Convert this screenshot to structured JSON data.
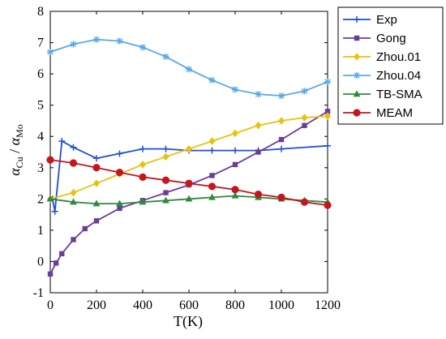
{
  "chart_data": {
    "type": "line",
    "xlabel": "T(K)",
    "ylabel": {
      "alpha1": "α",
      "sub1": "Cu",
      "slash": " / ",
      "alpha2": "α",
      "sub2": "Mo"
    },
    "xlim": [
      0,
      1200
    ],
    "ylim": [
      -1,
      8
    ],
    "x_ticks": [
      "0",
      "200",
      "400",
      "600",
      "800",
      "1000",
      "1200"
    ],
    "y_ticks": [
      "-1",
      "0",
      "1",
      "2",
      "3",
      "4",
      "5",
      "6",
      "7",
      "8"
    ],
    "grid": false,
    "legend_position": "outside-top-right",
    "series": [
      {
        "name": "Exp",
        "color": "#1f4fd1",
        "marker": "plus",
        "points": [
          [
            10,
            2.0
          ],
          [
            20,
            1.6
          ],
          [
            50,
            3.85
          ],
          [
            100,
            3.65
          ],
          [
            200,
            3.3
          ],
          [
            300,
            3.45
          ],
          [
            400,
            3.6
          ],
          [
            500,
            3.6
          ],
          [
            600,
            3.55
          ],
          [
            700,
            3.55
          ],
          [
            800,
            3.55
          ],
          [
            900,
            3.55
          ],
          [
            1000,
            3.6
          ],
          [
            1200,
            3.7
          ]
        ]
      },
      {
        "name": "Gong",
        "color": "#6a3d9a",
        "marker": "square",
        "points": [
          [
            0,
            -0.4
          ],
          [
            25,
            -0.05
          ],
          [
            50,
            0.25
          ],
          [
            100,
            0.7
          ],
          [
            150,
            1.05
          ],
          [
            200,
            1.3
          ],
          [
            300,
            1.7
          ],
          [
            400,
            1.95
          ],
          [
            500,
            2.2
          ],
          [
            600,
            2.45
          ],
          [
            700,
            2.75
          ],
          [
            800,
            3.1
          ],
          [
            900,
            3.5
          ],
          [
            1000,
            3.9
          ],
          [
            1100,
            4.35
          ],
          [
            1200,
            4.8
          ]
        ]
      },
      {
        "name": "Zhou.01",
        "color": "#e8c20c",
        "marker": "diamond",
        "points": [
          [
            0,
            2.0
          ],
          [
            100,
            2.2
          ],
          [
            200,
            2.5
          ],
          [
            300,
            2.8
          ],
          [
            400,
            3.1
          ],
          [
            500,
            3.35
          ],
          [
            600,
            3.6
          ],
          [
            700,
            3.85
          ],
          [
            800,
            4.1
          ],
          [
            900,
            4.35
          ],
          [
            1000,
            4.5
          ],
          [
            1100,
            4.6
          ],
          [
            1200,
            4.65
          ]
        ]
      },
      {
        "name": "Zhou.04",
        "color": "#5aa9e6",
        "marker": "star",
        "points": [
          [
            0,
            6.7
          ],
          [
            100,
            6.95
          ],
          [
            200,
            7.1
          ],
          [
            300,
            7.05
          ],
          [
            400,
            6.85
          ],
          [
            500,
            6.55
          ],
          [
            600,
            6.15
          ],
          [
            700,
            5.8
          ],
          [
            800,
            5.5
          ],
          [
            900,
            5.35
          ],
          [
            1000,
            5.3
          ],
          [
            1100,
            5.45
          ],
          [
            1200,
            5.75
          ]
        ]
      },
      {
        "name": "TB-SMA",
        "color": "#2e8b3d",
        "marker": "triangle",
        "points": [
          [
            0,
            2.0
          ],
          [
            100,
            1.9
          ],
          [
            200,
            1.85
          ],
          [
            300,
            1.85
          ],
          [
            400,
            1.9
          ],
          [
            500,
            1.95
          ],
          [
            600,
            2.0
          ],
          [
            700,
            2.05
          ],
          [
            800,
            2.1
          ],
          [
            900,
            2.05
          ],
          [
            1000,
            2.0
          ],
          [
            1100,
            1.95
          ],
          [
            1200,
            1.9
          ]
        ]
      },
      {
        "name": "MEAM",
        "color": "#c4161c",
        "marker": "circle",
        "points": [
          [
            0,
            3.25
          ],
          [
            100,
            3.15
          ],
          [
            200,
            3.0
          ],
          [
            300,
            2.85
          ],
          [
            400,
            2.7
          ],
          [
            500,
            2.6
          ],
          [
            600,
            2.5
          ],
          [
            700,
            2.4
          ],
          [
            800,
            2.3
          ],
          [
            900,
            2.15
          ],
          [
            1000,
            2.05
          ],
          [
            1100,
            1.9
          ],
          [
            1200,
            1.8
          ]
        ]
      }
    ]
  }
}
